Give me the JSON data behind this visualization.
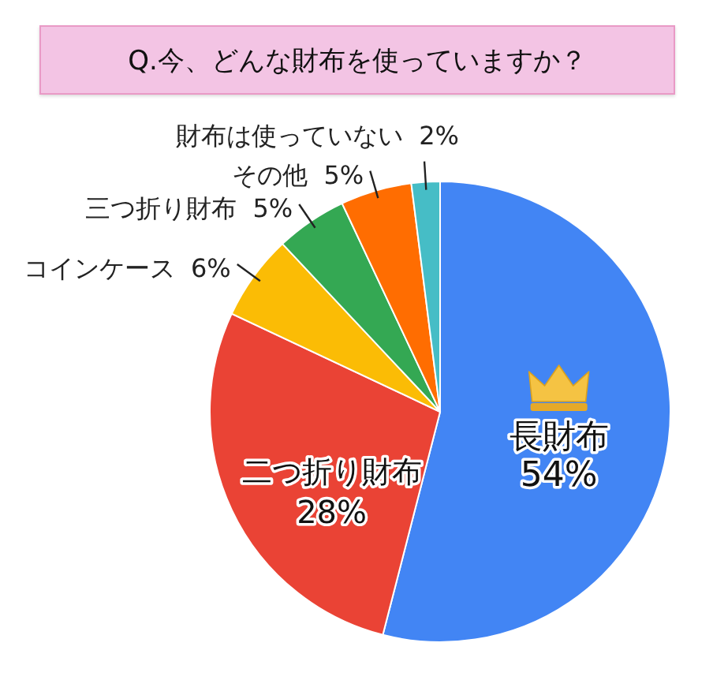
{
  "chart_data": {
    "type": "pie",
    "title": "Q.今、どんな財布を使っていますか？",
    "categories": [
      "長財布",
      "二つ折り財布",
      "コインケース",
      "三つ折り財布",
      "その他",
      "財布は使っていない"
    ],
    "values": [
      54,
      28,
      6,
      5,
      5,
      2
    ],
    "colors": [
      "#4285f4",
      "#ea4335",
      "#fbbc05",
      "#34a853",
      "#ff6d01",
      "#46bdc6"
    ],
    "value_labels": [
      "54%",
      "28%",
      "6%",
      "5%",
      "5%",
      "2%"
    ]
  }
}
